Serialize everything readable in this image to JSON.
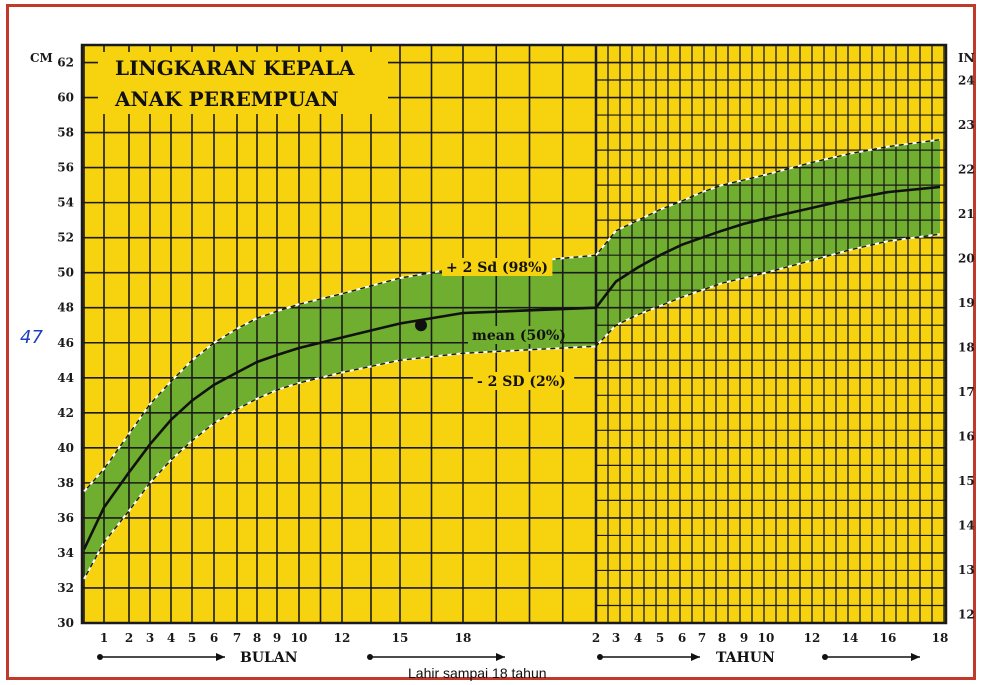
{
  "colors": {
    "background": "#f7d20e",
    "grid": "#1a1a1a",
    "band": "#6fae2e",
    "curve": "#111111",
    "frame": "#c0392b",
    "handwriting": "#1f3fbf"
  },
  "chart_data": {
    "type": "line",
    "title_lines": [
      "LINGKARAN KEPALA",
      "ANAK PEREMPUAN"
    ],
    "y_left_unit": "CM",
    "y_right_unit": "IN",
    "ylim": [
      30,
      63
    ],
    "y_left_ticks": [
      30,
      32,
      34,
      36,
      38,
      40,
      42,
      44,
      46,
      48,
      50,
      52,
      54,
      56,
      58,
      60,
      62
    ],
    "y_right_ticks": [
      12,
      13,
      14,
      15,
      16,
      17,
      18,
      19,
      20,
      21,
      22,
      23,
      24
    ],
    "x_month_ticks": [
      "1",
      "2",
      "3",
      "4",
      "5",
      "6",
      "7",
      "8",
      "9",
      "10",
      "12",
      "15",
      "18"
    ],
    "x_month_positions": [
      1,
      2,
      3,
      4,
      5,
      6,
      7,
      8,
      9,
      10,
      12,
      15,
      18
    ],
    "x_year_ticks": [
      "2",
      "3",
      "4",
      "5",
      "6",
      "7",
      "8",
      "9",
      "10",
      "12",
      "14",
      "16",
      "18"
    ],
    "x_year_positions": [
      2,
      3,
      4,
      5,
      6,
      7,
      8,
      9,
      10,
      12,
      14,
      16,
      18
    ],
    "x_month_label": "BULAN",
    "x_year_label": "TAHUN",
    "caption": "Lahir sampai 18 tahun",
    "grid": true,
    "series": [
      {
        "name": "+ 2 Sd (98%)",
        "style": "dashed",
        "months": [
          [
            0,
            37.5
          ],
          [
            1,
            38.8
          ],
          [
            2,
            40.8
          ],
          [
            3,
            42.5
          ],
          [
            4,
            43.8
          ],
          [
            5,
            45.0
          ],
          [
            6,
            46.0
          ],
          [
            7,
            46.8
          ],
          [
            8,
            47.4
          ],
          [
            9,
            47.8
          ],
          [
            10,
            48.2
          ],
          [
            12,
            48.8
          ],
          [
            15,
            49.7
          ],
          [
            18,
            50.3
          ],
          [
            24,
            51.0
          ]
        ],
        "years": [
          [
            2,
            51.0
          ],
          [
            3,
            52.4
          ],
          [
            4,
            53.0
          ],
          [
            5,
            53.6
          ],
          [
            6,
            54.1
          ],
          [
            7,
            54.6
          ],
          [
            8,
            55.0
          ],
          [
            9,
            55.3
          ],
          [
            10,
            55.6
          ],
          [
            12,
            56.3
          ],
          [
            14,
            56.8
          ],
          [
            16,
            57.2
          ],
          [
            18,
            57.6
          ]
        ]
      },
      {
        "name": "mean (50%)",
        "style": "solid",
        "months": [
          [
            0,
            34.2
          ],
          [
            1,
            36.6
          ],
          [
            2,
            38.6
          ],
          [
            3,
            40.2
          ],
          [
            4,
            41.6
          ],
          [
            5,
            42.7
          ],
          [
            6,
            43.6
          ],
          [
            7,
            44.3
          ],
          [
            8,
            44.9
          ],
          [
            9,
            45.3
          ],
          [
            10,
            45.7
          ],
          [
            12,
            46.3
          ],
          [
            15,
            47.1
          ],
          [
            18,
            47.7
          ],
          [
            24,
            48.0
          ]
        ],
        "years": [
          [
            2,
            48.0
          ],
          [
            3,
            49.5
          ],
          [
            4,
            50.3
          ],
          [
            5,
            51.0
          ],
          [
            6,
            51.6
          ],
          [
            7,
            52.0
          ],
          [
            8,
            52.4
          ],
          [
            9,
            52.8
          ],
          [
            10,
            53.1
          ],
          [
            12,
            53.7
          ],
          [
            14,
            54.2
          ],
          [
            16,
            54.6
          ],
          [
            18,
            54.9
          ]
        ]
      },
      {
        "name": "- 2 SD (2%)",
        "style": "dashed",
        "months": [
          [
            0,
            32.5
          ],
          [
            1,
            34.6
          ],
          [
            2,
            36.4
          ],
          [
            3,
            38.0
          ],
          [
            4,
            39.3
          ],
          [
            5,
            40.4
          ],
          [
            6,
            41.4
          ],
          [
            7,
            42.2
          ],
          [
            8,
            42.8
          ],
          [
            9,
            43.3
          ],
          [
            10,
            43.7
          ],
          [
            12,
            44.3
          ],
          [
            15,
            45.0
          ],
          [
            18,
            45.4
          ],
          [
            24,
            45.8
          ]
        ],
        "years": [
          [
            2,
            45.8
          ],
          [
            3,
            47.0
          ],
          [
            4,
            47.6
          ],
          [
            5,
            48.1
          ],
          [
            6,
            48.6
          ],
          [
            7,
            49.0
          ],
          [
            8,
            49.4
          ],
          [
            9,
            49.7
          ],
          [
            10,
            50.0
          ],
          [
            12,
            50.7
          ],
          [
            14,
            51.3
          ],
          [
            16,
            51.8
          ],
          [
            18,
            52.2
          ]
        ]
      }
    ],
    "marked_point": {
      "x_month": 16,
      "y": 47
    },
    "handwritten_annotation": "47"
  }
}
